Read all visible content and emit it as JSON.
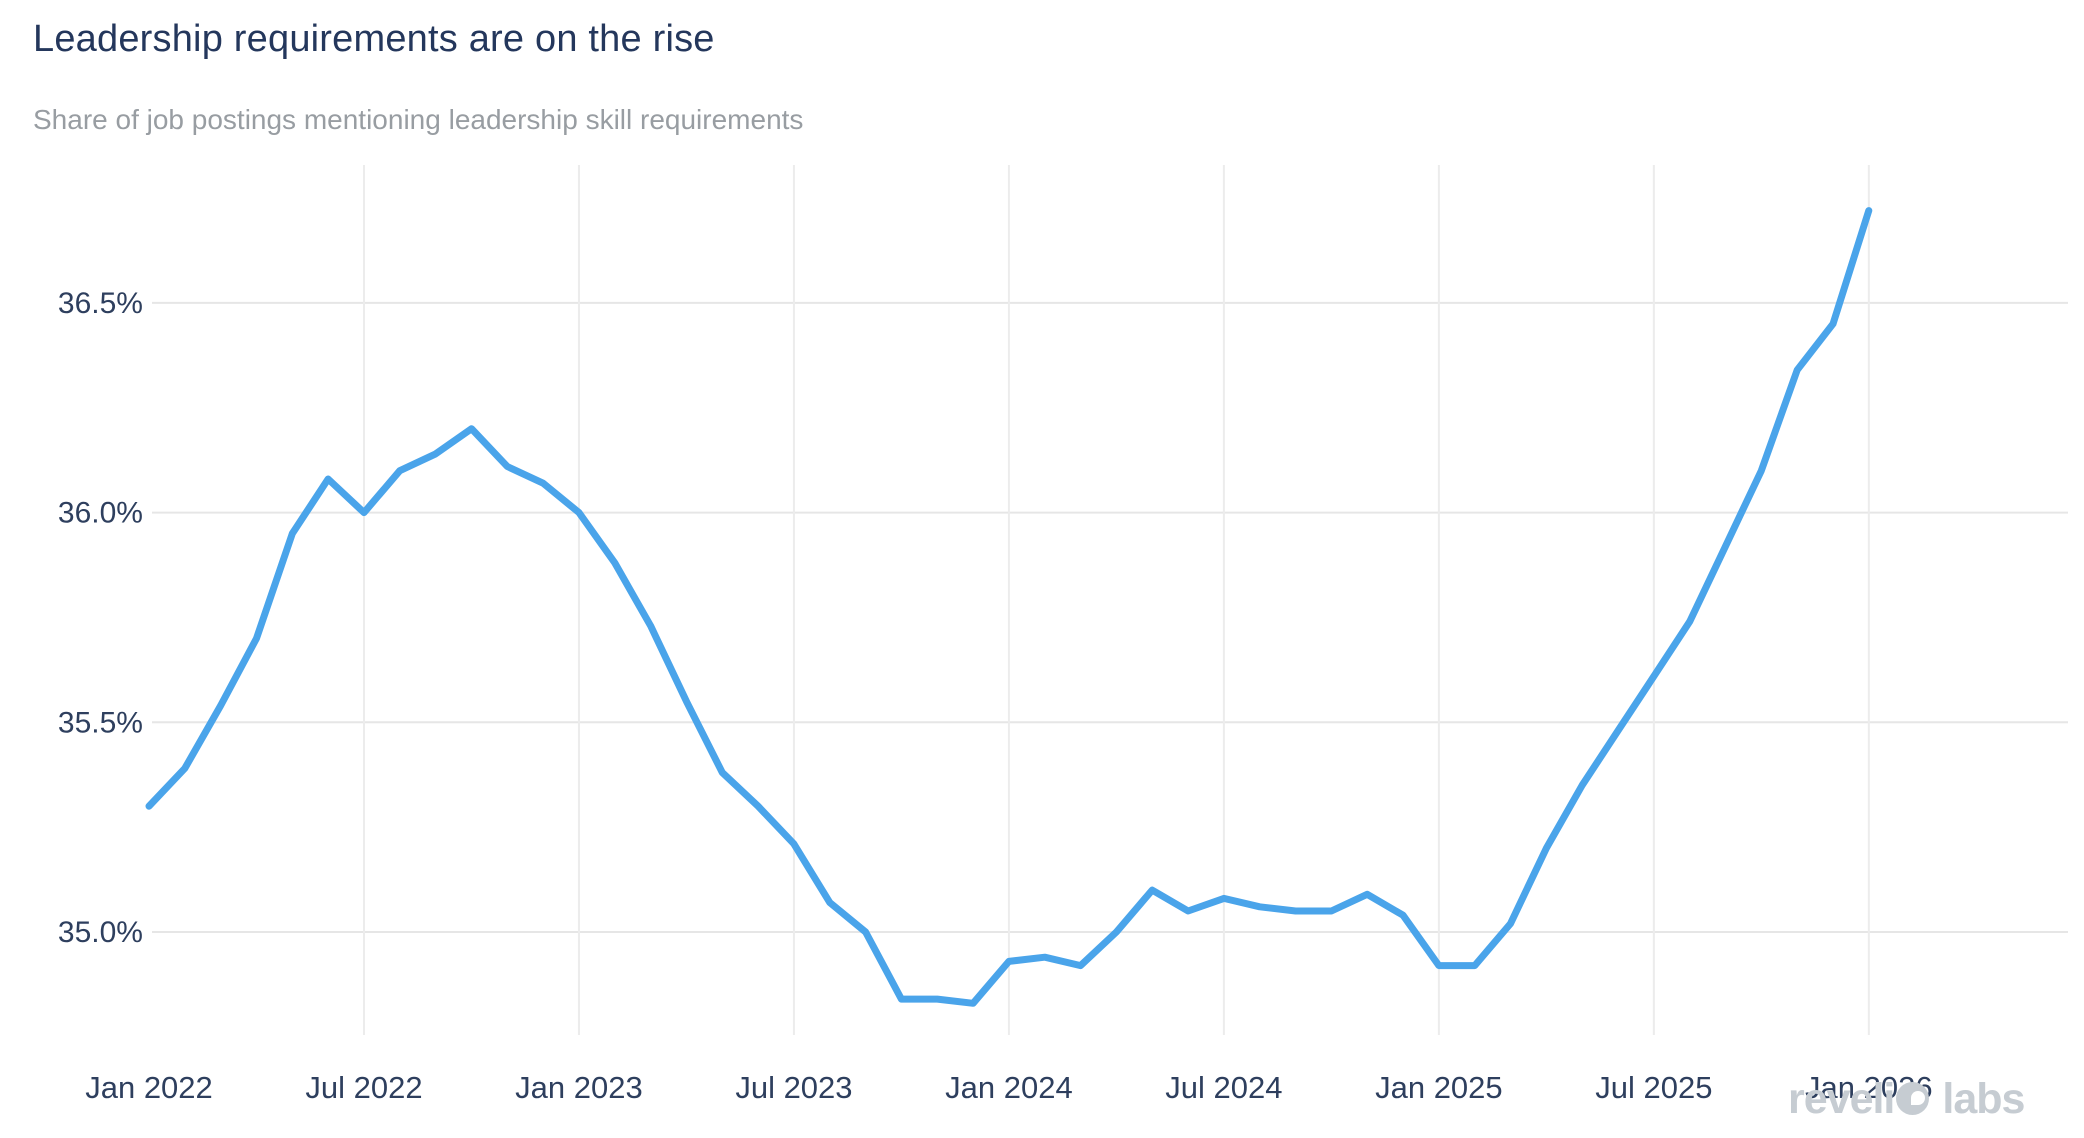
{
  "header": {
    "title": "Leadership requirements are on the rise",
    "subtitle": "Share of job postings mentioning leadership skill requirements"
  },
  "logo": {
    "text": "revelio labs",
    "part1": "reveli",
    "o_icon": "revelio-o-icon",
    "part2": "labs",
    "color": "#c6ccd2"
  },
  "colors": {
    "line": "#4aa4ea",
    "title_text": "#24375c",
    "subtitle_text": "#989da2",
    "tick_text": "#2e3f5e",
    "h_gridline": "#e6e6e6",
    "v_gridline": "#ececec"
  },
  "chart_data": {
    "type": "line",
    "title": "Leadership requirements are on the rise",
    "subtitle": "Share of job postings mentioning leadership skill requirements",
    "xlabel": "",
    "ylabel": "",
    "x_frequency": "monthly",
    "x_start": "Jan 2022",
    "x_end": "Jan 2026",
    "grid": true,
    "legend": false,
    "ylim": [
      34.75,
      36.83
    ],
    "y_ticks": [
      {
        "value": 35.0,
        "label": "35.0%"
      },
      {
        "value": 35.5,
        "label": "35.5%"
      },
      {
        "value": 36.0,
        "label": "36.0%"
      },
      {
        "value": 36.5,
        "label": "36.5%"
      }
    ],
    "x_ticks": [
      {
        "index": 0,
        "label": "Jan 2022"
      },
      {
        "index": 6,
        "label": "Jul 2022"
      },
      {
        "index": 12,
        "label": "Jan 2023"
      },
      {
        "index": 18,
        "label": "Jul 2023"
      },
      {
        "index": 24,
        "label": "Jan 2024"
      },
      {
        "index": 30,
        "label": "Jul 2024"
      },
      {
        "index": 36,
        "label": "Jan 2025"
      },
      {
        "index": 42,
        "label": "Jul 2025"
      },
      {
        "index": 48,
        "label": "Jan 2026"
      }
    ],
    "series": [
      {
        "name": "Share of job postings mentioning leadership skill requirements",
        "color": "#4aa4ea",
        "months": [
          "Jan 2022",
          "Feb 2022",
          "Mar 2022",
          "Apr 2022",
          "May 2022",
          "Jun 2022",
          "Jul 2022",
          "Aug 2022",
          "Sep 2022",
          "Oct 2022",
          "Nov 2022",
          "Dec 2022",
          "Jan 2023",
          "Feb 2023",
          "Mar 2023",
          "Apr 2023",
          "May 2023",
          "Jun 2023",
          "Jul 2023",
          "Aug 2023",
          "Sep 2023",
          "Oct 2023",
          "Nov 2023",
          "Dec 2023",
          "Jan 2024",
          "Feb 2024",
          "Mar 2024",
          "Apr 2024",
          "May 2024",
          "Jun 2024",
          "Jul 2024",
          "Aug 2024",
          "Sep 2024",
          "Oct 2024",
          "Nov 2024",
          "Dec 2024",
          "Jan 2025",
          "Feb 2025",
          "Mar 2025",
          "Apr 2025",
          "May 2025",
          "Jun 2025",
          "Jul 2025",
          "Aug 2025",
          "Sep 2025",
          "Oct 2025",
          "Nov 2025",
          "Dec 2025",
          "Jan 2026"
        ],
        "values": [
          35.3,
          35.39,
          35.54,
          35.7,
          35.95,
          36.08,
          36.0,
          36.1,
          36.14,
          36.2,
          36.11,
          36.07,
          36.0,
          35.88,
          35.73,
          35.55,
          35.38,
          35.3,
          35.21,
          35.07,
          35.0,
          34.84,
          34.84,
          34.83,
          34.93,
          34.94,
          34.92,
          35.0,
          35.1,
          35.05,
          35.08,
          35.06,
          35.05,
          35.05,
          35.09,
          35.04,
          34.92,
          34.92,
          35.02,
          35.2,
          35.35,
          35.48,
          35.61,
          35.74,
          35.92,
          36.1,
          36.34,
          36.45,
          36.72
        ]
      }
    ]
  }
}
